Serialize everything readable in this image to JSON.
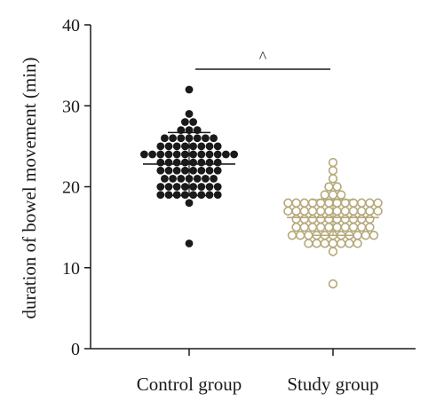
{
  "chart_data": {
    "type": "scatter",
    "title": "",
    "xlabel": "",
    "ylabel": "duration of bowel movement (min)",
    "ylim": [
      0,
      40
    ],
    "yticks": [
      0,
      10,
      20,
      30,
      40
    ],
    "categories": [
      "Control group",
      "Study group"
    ],
    "grid": false,
    "legend": "none",
    "significance": {
      "between": [
        "Control group",
        "Study group"
      ],
      "label": "^"
    },
    "series": [
      {
        "category": "Control group",
        "color": "#1a1a1a",
        "marker": "filled-circle",
        "mean": 22.8,
        "sd": 3.9,
        "values": [
          32,
          29,
          28,
          28,
          27,
          27,
          27,
          26,
          26,
          26,
          26,
          26,
          26,
          26,
          25,
          25,
          25,
          25,
          25,
          25,
          25,
          25,
          24,
          24,
          24,
          24,
          24,
          24,
          24,
          24,
          24,
          24,
          24,
          24,
          23,
          23,
          23,
          23,
          23,
          23,
          23,
          23,
          22,
          22,
          22,
          22,
          22,
          22,
          22,
          22,
          21,
          21,
          21,
          21,
          21,
          21,
          21,
          20,
          20,
          20,
          20,
          20,
          20,
          20,
          20,
          19,
          19,
          19,
          19,
          19,
          19,
          19,
          19,
          18,
          13
        ]
      },
      {
        "category": "Study group",
        "color": "#b5a87a",
        "marker": "open-circle",
        "mean": 16.2,
        "sd": 2.2,
        "values": [
          23,
          22,
          21,
          20,
          20,
          19,
          19,
          19,
          18,
          18,
          18,
          18,
          18,
          18,
          18,
          18,
          18,
          18,
          18,
          18,
          17,
          17,
          17,
          17,
          17,
          17,
          17,
          17,
          17,
          17,
          17,
          17,
          16,
          16,
          16,
          16,
          16,
          16,
          16,
          16,
          16,
          16,
          15,
          15,
          15,
          15,
          15,
          15,
          15,
          15,
          15,
          15,
          14,
          14,
          14,
          14,
          14,
          14,
          14,
          14,
          14,
          14,
          14,
          13,
          13,
          13,
          13,
          13,
          13,
          13,
          12,
          8
        ]
      }
    ]
  }
}
